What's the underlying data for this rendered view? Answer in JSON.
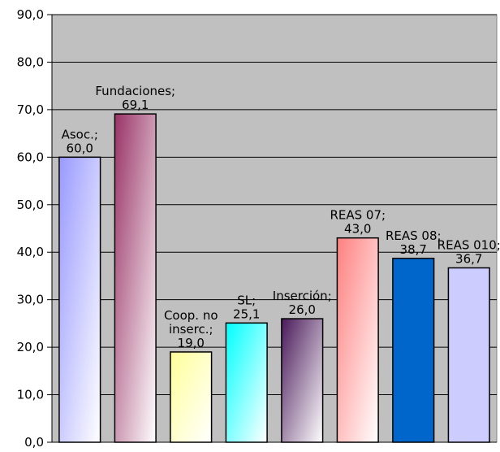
{
  "chart_data": {
    "type": "bar",
    "categories": [
      "Asoc.",
      "Fundaciones",
      "Coop. no inserc.",
      "SL",
      "Inserción",
      "REAS 07",
      "REAS 08",
      "REAS 010"
    ],
    "values": [
      60.0,
      69.1,
      19.0,
      25.1,
      26.0,
      43.0,
      38.7,
      36.7
    ],
    "data_labels": [
      [
        "Asoc.;",
        "60,0"
      ],
      [
        "Fundaciones;",
        "69,1"
      ],
      [
        "Coop. no",
        "inserc.;",
        "19,0"
      ],
      [
        "SL;",
        "25,1"
      ],
      [
        "Inserción;",
        "26,0"
      ],
      [
        "REAS 07;",
        "43,0"
      ],
      [
        "REAS 08;",
        "38,7"
      ],
      [
        "REAS 010;",
        "36,7"
      ]
    ],
    "title": "",
    "xlabel": "",
    "ylabel": "",
    "ylim": [
      0,
      90
    ],
    "yticks": [
      0,
      10,
      20,
      30,
      40,
      50,
      60,
      70,
      80,
      90
    ],
    "ytick_labels": [
      "0,0",
      "10,0",
      "20,0",
      "30,0",
      "40,0",
      "50,0",
      "60,0",
      "70,0",
      "80,0",
      "90,0"
    ],
    "grid": true,
    "legend": "none",
    "plot_background": "#c0c0c0",
    "gridline_color": "#000000",
    "bar_gradients": [
      [
        "#9999ff",
        "#ffffff"
      ],
      [
        "#993366",
        "#ffffff"
      ],
      [
        "#ffff99",
        "#ffffff"
      ],
      [
        "#00ffff",
        "#ffffff"
      ],
      [
        "#4a1a5a",
        "#ffffff"
      ],
      [
        "#ff8080",
        "#ffffff"
      ],
      [
        "#0066cc",
        "#0066cc"
      ],
      [
        "#ccccff",
        "#ccccff"
      ]
    ]
  }
}
